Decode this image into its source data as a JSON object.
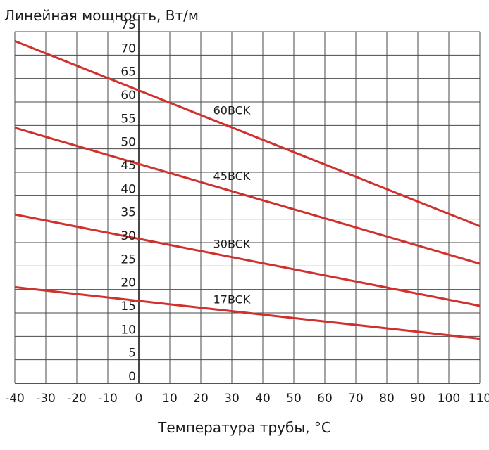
{
  "chart_data": {
    "type": "line",
    "title": "Линейная мощность, Вт/м",
    "xlabel": "Температура трубы, °С",
    "ylabel": "",
    "xlim": [
      -40,
      110
    ],
    "ylim": [
      0,
      75
    ],
    "x_ticks": [
      -40,
      -30,
      -20,
      -10,
      0,
      10,
      20,
      30,
      40,
      50,
      60,
      70,
      80,
      90,
      100,
      110
    ],
    "y_ticks": [
      0,
      5,
      10,
      15,
      20,
      25,
      30,
      35,
      40,
      45,
      50,
      55,
      60,
      65,
      70,
      75
    ],
    "grid": true,
    "line_color": "#d0312d",
    "series": [
      {
        "name": "60BCK",
        "x": [
          -40,
          110
        ],
        "y": [
          73,
          33.5
        ],
        "label_x": 24
      },
      {
        "name": "45BCK",
        "x": [
          -40,
          110
        ],
        "y": [
          54.5,
          25.5
        ],
        "label_x": 24
      },
      {
        "name": "30BCK",
        "x": [
          -40,
          110
        ],
        "y": [
          36,
          16.5
        ],
        "label_x": 24
      },
      {
        "name": "17BCK",
        "x": [
          -40,
          110
        ],
        "y": [
          20.5,
          9.5
        ],
        "label_x": 24
      }
    ]
  }
}
